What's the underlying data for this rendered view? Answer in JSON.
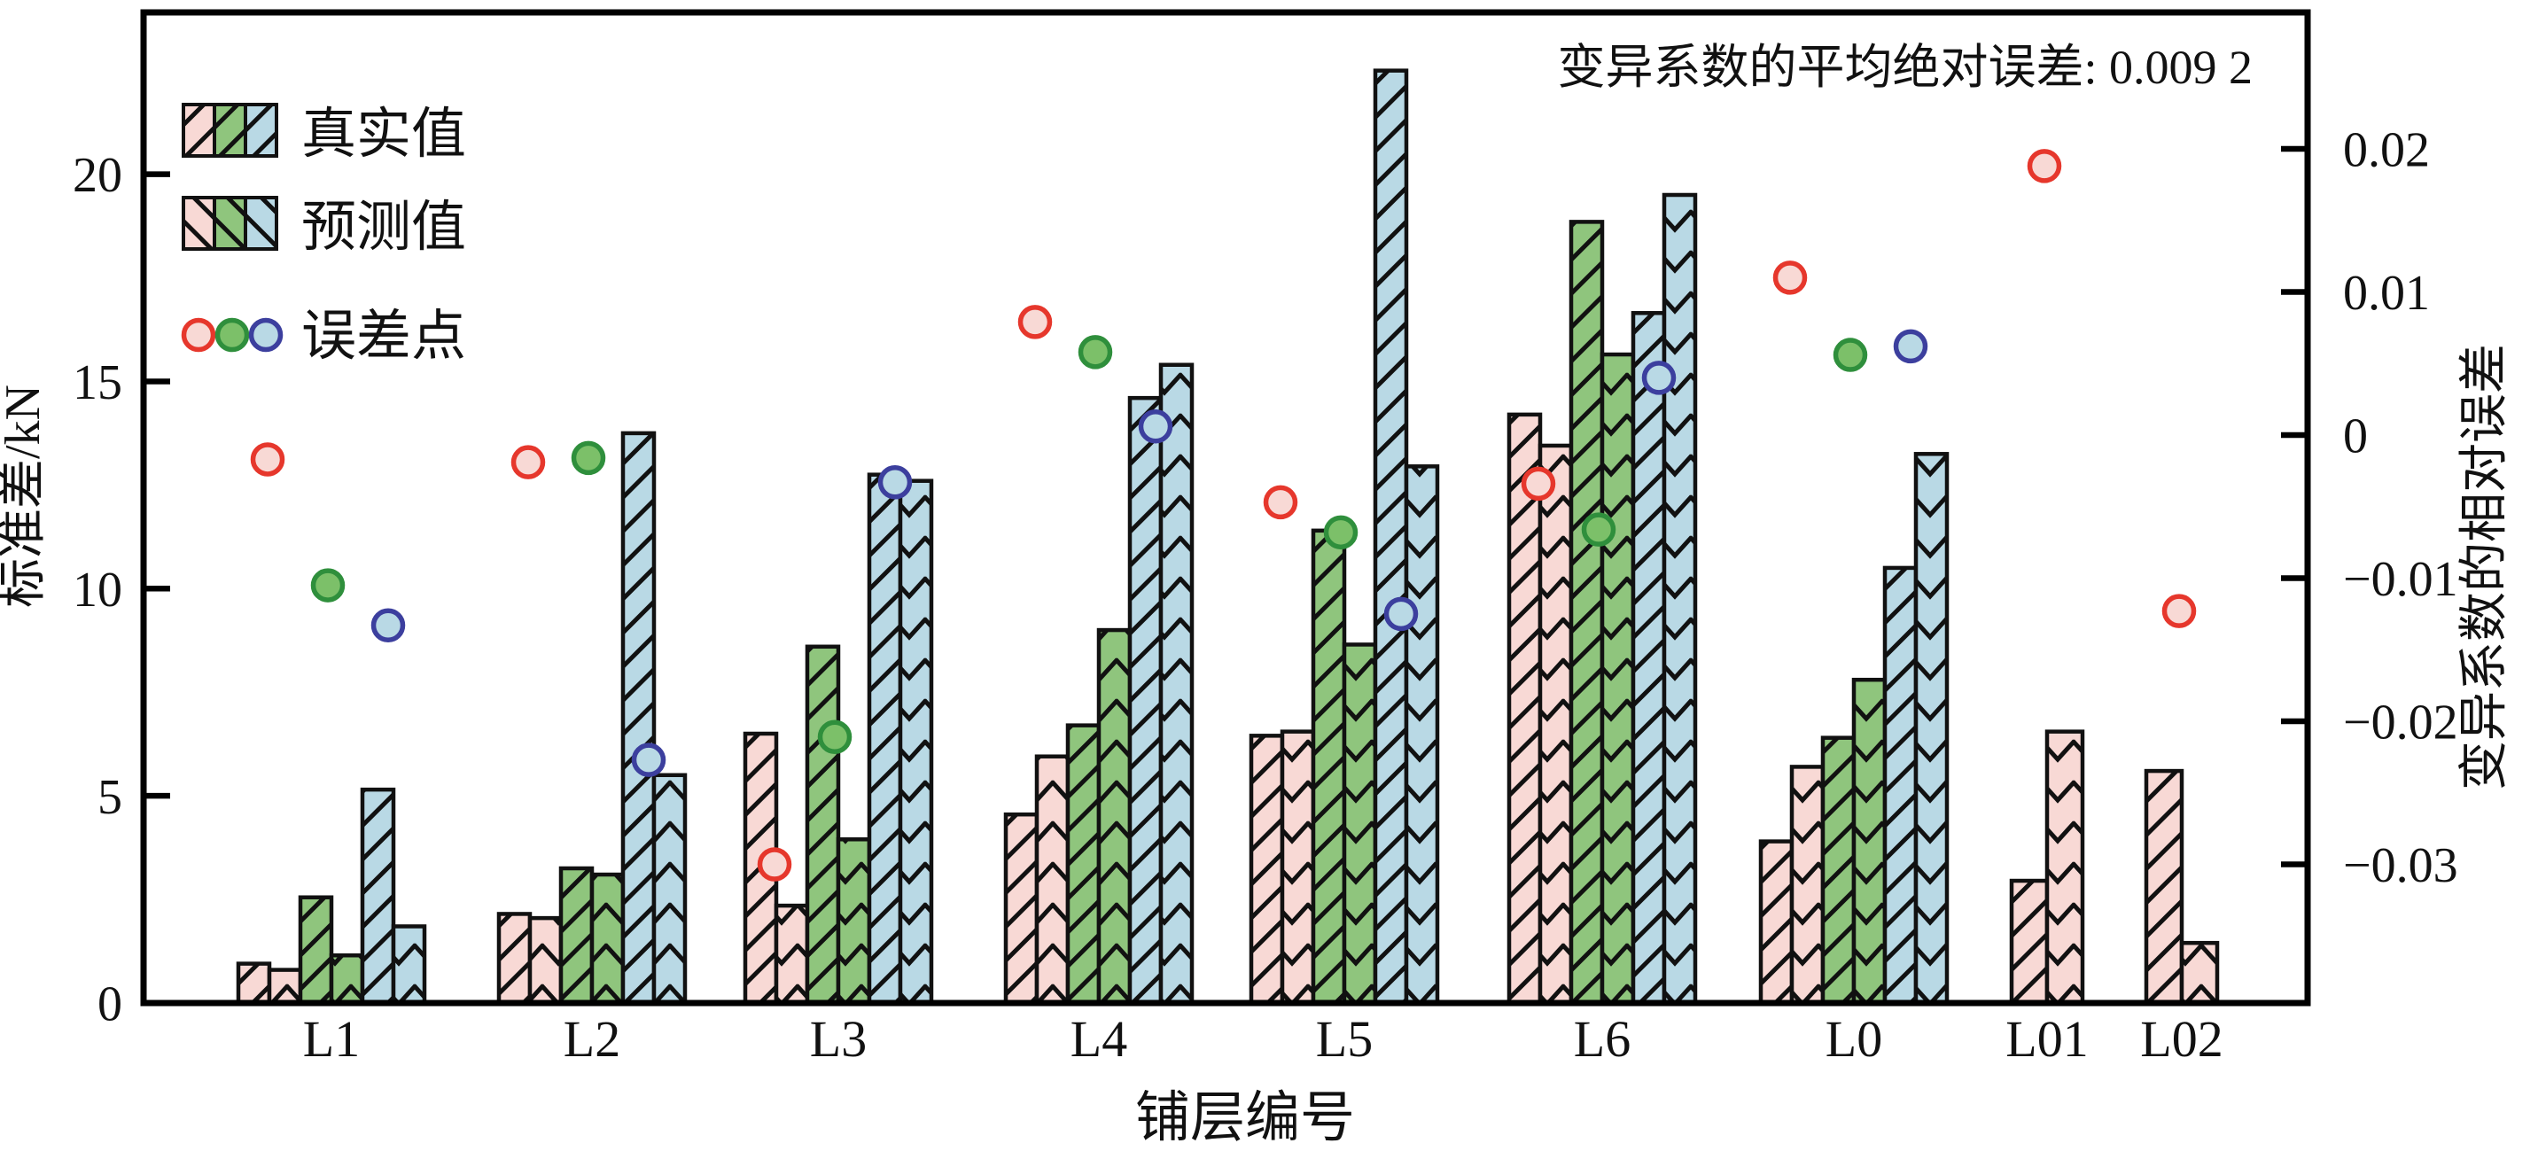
{
  "chart_data": {
    "type": "bar",
    "annotation": "变异系数的平均绝对误差: 0.009 2",
    "xlabel": "铺层编号",
    "left_axis": {
      "label": "标准差/kN",
      "ticks": [
        0,
        5,
        10,
        15,
        20
      ],
      "range": [
        0,
        23.9
      ]
    },
    "right_axis": {
      "label": "变异系数的相对误差",
      "ticks": [
        "0.02",
        "0.01",
        "0",
        "-0.01",
        "-0.02",
        "-0.03"
      ],
      "tick_values": [
        0.02,
        0.01,
        0,
        -0.01,
        -0.02,
        -0.03
      ],
      "range": [
        -0.0397,
        0.0295
      ]
    },
    "categories": [
      "L1",
      "L2",
      "L3",
      "L4",
      "L5",
      "L6",
      "L0",
      "L01",
      "L02"
    ],
    "narrow_categories": [
      "L01",
      "L02"
    ],
    "series": [
      {
        "id": "pink-true",
        "kind": "true",
        "color": "#f8d9d5",
        "values": [
          0.95,
          2.15,
          6.5,
          4.55,
          6.45,
          14.2,
          3.9,
          2.95,
          5.6
        ]
      },
      {
        "id": "pink-pred",
        "kind": "pred",
        "color": "#f8d9d5",
        "values": [
          0.8,
          2.05,
          2.35,
          5.95,
          6.55,
          13.45,
          5.7,
          6.55,
          1.45
        ]
      },
      {
        "id": "green-true",
        "kind": "true",
        "color": "#8fc57d",
        "values": [
          2.55,
          3.25,
          8.6,
          6.7,
          11.4,
          18.85,
          6.4,
          null,
          null
        ]
      },
      {
        "id": "green-pred",
        "kind": "pred",
        "color": "#8fc57d",
        "values": [
          1.15,
          3.1,
          3.95,
          9.0,
          8.65,
          15.65,
          7.8,
          null,
          null
        ]
      },
      {
        "id": "blue-true",
        "kind": "true",
        "color": "#b9d9e5",
        "values": [
          5.15,
          13.75,
          12.75,
          14.6,
          22.5,
          16.65,
          10.5,
          null,
          null
        ]
      },
      {
        "id": "blue-pred",
        "kind": "pred",
        "color": "#b9d9e5",
        "values": [
          1.85,
          5.5,
          12.6,
          15.4,
          12.95,
          19.5,
          13.25,
          null,
          null
        ]
      }
    ],
    "error_series": [
      {
        "id": "error-red",
        "ring": "#e6372c",
        "fill": "#f8d9d5",
        "values": [
          -0.0017,
          -0.0019,
          -0.03,
          0.0079,
          -0.0047,
          -0.0034,
          0.011,
          0.0188,
          -0.0123
        ]
      },
      {
        "id": "error-green",
        "ring": "#2f8f3c",
        "fill": "#7cc069",
        "values": [
          -0.0105,
          -0.0016,
          -0.0211,
          0.0058,
          -0.0068,
          -0.0066,
          0.0056,
          null,
          null
        ]
      },
      {
        "id": "error-blue",
        "ring": "#3c3f9e",
        "fill": "#b9d9e5",
        "values": [
          -0.0133,
          -0.0227,
          -0.0033,
          0.0006,
          -0.0125,
          0.004,
          0.0062,
          null,
          null
        ]
      }
    ],
    "legend": {
      "items": [
        {
          "label": "真实值",
          "swatch": "hatch-forward",
          "colors": [
            "#f8d9d5",
            "#8fc57d",
            "#b9d9e5"
          ]
        },
        {
          "label": "预测值",
          "swatch": "hatch-back",
          "colors": [
            "#f8d9d5",
            "#8fc57d",
            "#b9d9e5"
          ]
        },
        {
          "label": "误差点",
          "swatch": "circles",
          "ring_colors": [
            "#e6372c",
            "#2f8f3c",
            "#3c3f9e"
          ],
          "fill_colors": [
            "#f8d9d5",
            "#7cc069",
            "#b9d9e5"
          ]
        }
      ]
    },
    "style": {
      "bar_outline": "#111111",
      "hatch_color": "#111111",
      "frame_color": "#000000"
    }
  }
}
